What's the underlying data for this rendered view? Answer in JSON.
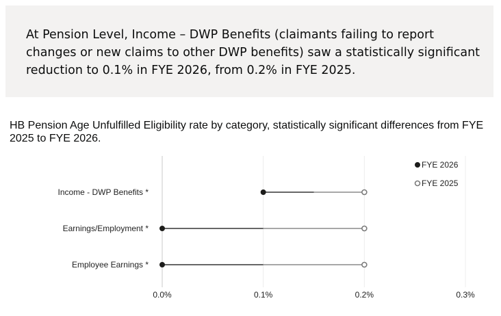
{
  "callout": {
    "text": "At Pension Level, Income – DWP Benefits (claimants failing to report changes or new claims to other DWP benefits) saw a statistically significant reduction to 0.1% in FYE 2026, from 0.2% in FYE 2025."
  },
  "chart_data": {
    "type": "dumbbell",
    "title": "HB Pension Age Unfulfilled Eligibility rate by category, statistically significant differences from FYE 2025 to FYE 2026.",
    "categories": [
      "Income - DWP Benefits *",
      "Earnings/Employment *",
      "Employee Earnings *"
    ],
    "series": [
      {
        "name": "FYE 2026",
        "values": [
          0.1,
          0.0,
          0.0
        ],
        "color": "#1d1d1b",
        "marker": "filled"
      },
      {
        "name": "FYE 2025",
        "values": [
          0.2,
          0.2,
          0.2
        ],
        "color": "#7a7a7a",
        "marker": "hollow"
      }
    ],
    "xlim": [
      0,
      0.3
    ],
    "xticks": [
      0,
      0.1,
      0.2,
      0.3
    ],
    "xtick_labels": [
      "0.0%",
      "0.1%",
      "0.2%",
      "0.3%"
    ],
    "legend_position": "top-right",
    "grid": "vertical"
  }
}
